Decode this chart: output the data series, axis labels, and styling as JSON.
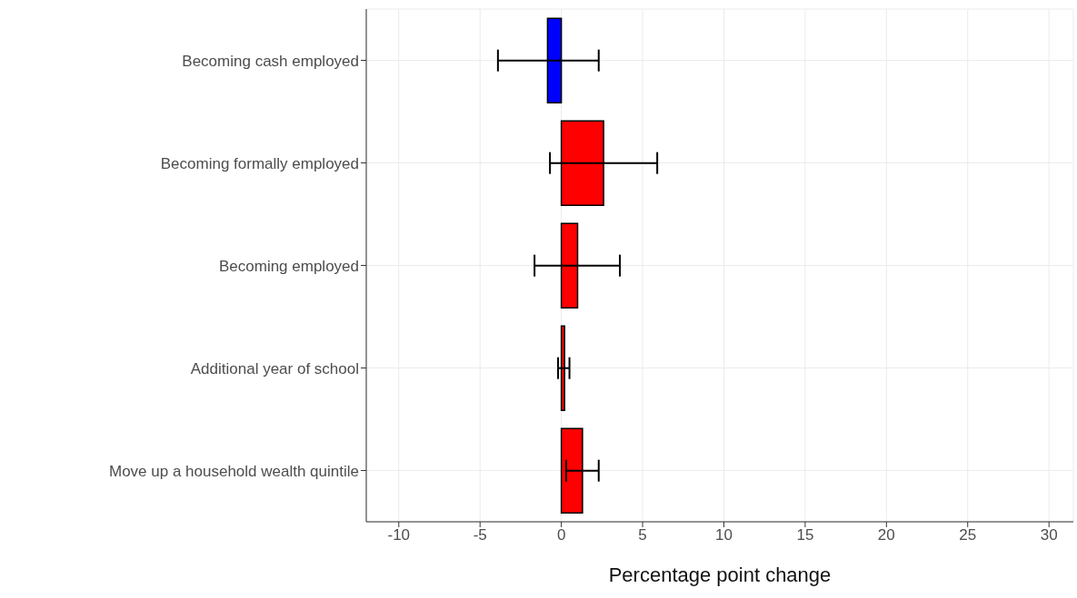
{
  "chart_data": {
    "type": "bar",
    "orientation": "horizontal",
    "xlabel": "Percentage point change",
    "categories": [
      "Becoming cash employed",
      "Becoming formally employed",
      "Becoming employed",
      "Additional year of school",
      "Move up a household wealth quintile"
    ],
    "values": [
      -0.85,
      2.6,
      1.0,
      0.2,
      1.3
    ],
    "colors": [
      "#0000ff",
      "#ff0000",
      "#ff0000",
      "#ff0000",
      "#ff0000"
    ],
    "errors": [
      [
        -3.9,
        2.3
      ],
      [
        -0.7,
        5.9
      ],
      [
        -1.65,
        3.6
      ],
      [
        -0.2,
        0.5
      ],
      [
        0.3,
        2.3
      ]
    ],
    "xlim": [
      -12,
      31.5
    ],
    "xticks": [
      -10,
      -5,
      0,
      5,
      10,
      15,
      20,
      25,
      30
    ],
    "grid": true
  }
}
